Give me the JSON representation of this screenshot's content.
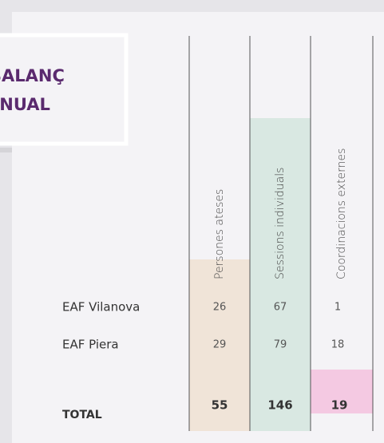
{
  "title": {
    "lines": [
      "BALANÇ",
      "ANUAL"
    ]
  },
  "table": {
    "columns": [
      "Persones ateses",
      "Sessions individuals",
      "Coordinacions externes"
    ],
    "rows": [
      {
        "label": "EAF Vilanova",
        "values": [
          26,
          67,
          1
        ]
      },
      {
        "label": "EAF Piera",
        "values": [
          29,
          79,
          18
        ]
      }
    ],
    "total": {
      "label": "TOTAL",
      "values": [
        55,
        146,
        19
      ]
    }
  }
}
